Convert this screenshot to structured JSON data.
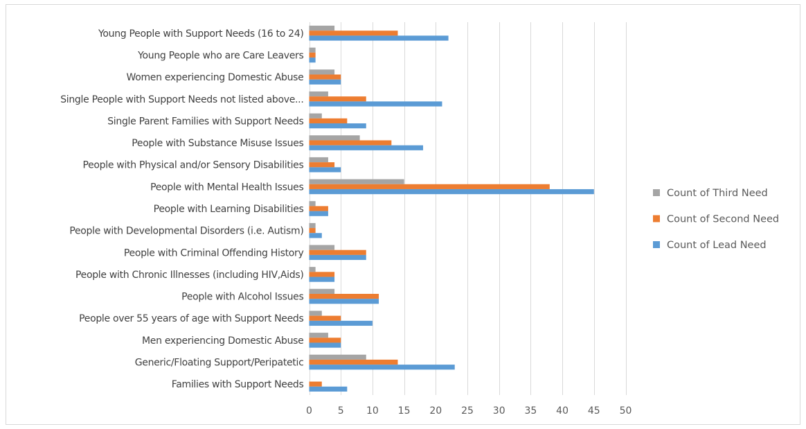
{
  "chart_data": {
    "type": "bar",
    "orientation": "horizontal",
    "categories": [
      "Families with Support Needs",
      "Generic/Floating Support/Peripatetic",
      "Men experiencing Domestic Abuse",
      "People over 55 years of age with Support Needs",
      "People with Alcohol Issues",
      "People with Chronic Illnesses (including HIV,Aids)",
      "People with Criminal Offending History",
      "People with Developmental Disorders (i.e. Autism)",
      "People with Learning Disabilities",
      "People with Mental Health Issues",
      "People with Physical and/or Sensory Disabilities",
      "People with Substance Misuse Issues",
      "Single Parent Families with Support Needs",
      "Single People with Support Needs not listed above...",
      "Women experiencing Domestic Abuse",
      "Young People who are Care Leavers",
      "Young People with Support Needs (16 to 24)"
    ],
    "series": [
      {
        "name": "Count of Lead Need",
        "color": "#5b9bd5",
        "values": [
          6,
          23,
          5,
          10,
          11,
          4,
          9,
          2,
          3,
          45,
          5,
          18,
          9,
          21,
          5,
          1,
          22
        ]
      },
      {
        "name": "Count of Second Need",
        "color": "#ed7d31",
        "values": [
          2,
          14,
          5,
          5,
          11,
          4,
          9,
          1,
          3,
          38,
          4,
          13,
          6,
          9,
          5,
          1,
          14
        ]
      },
      {
        "name": "Count of Third Need",
        "color": "#a5a5a5",
        "values": [
          0,
          9,
          3,
          2,
          4,
          1,
          4,
          1,
          1,
          15,
          3,
          8,
          2,
          3,
          4,
          1,
          4
        ]
      }
    ],
    "xlim": [
      0,
      50
    ],
    "xticks": [
      "0",
      "5",
      "10",
      "15",
      "20",
      "25",
      "30",
      "35",
      "40",
      "45",
      "50"
    ],
    "grid": true,
    "legend_position": "right",
    "legend_order": [
      "Count of Third Need",
      "Count of Second Need",
      "Count of Lead Need"
    ],
    "title": "",
    "xlabel": "",
    "ylabel": ""
  }
}
